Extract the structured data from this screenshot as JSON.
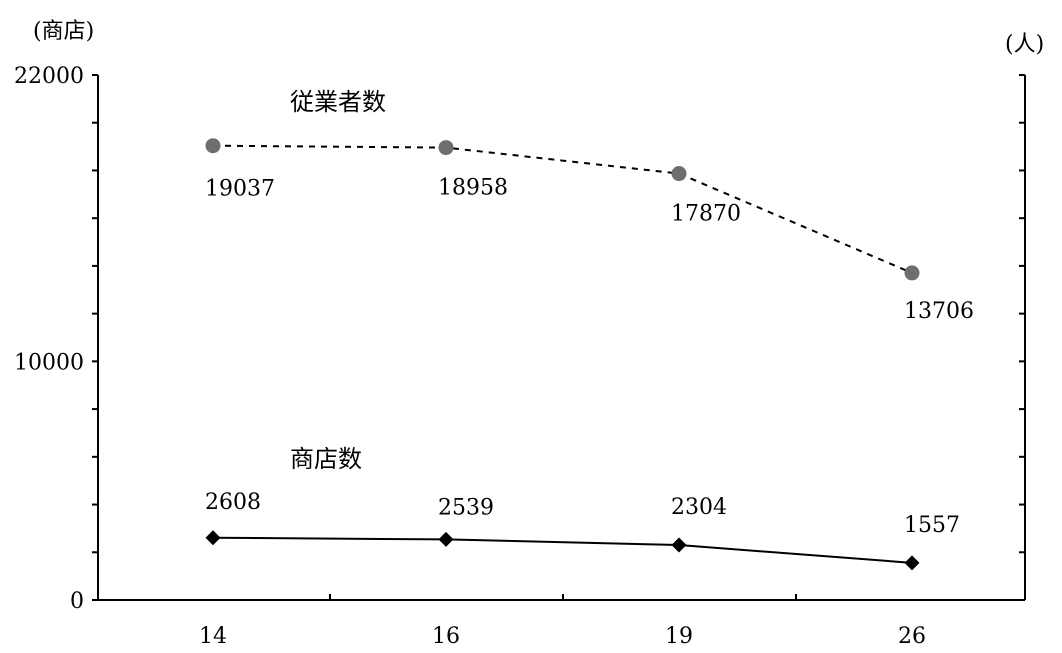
{
  "chart_data": {
    "type": "line",
    "x": [
      "14",
      "16",
      "19",
      "26"
    ],
    "y_left_unit": "(商店)",
    "y_right_unit": "(人)",
    "ylim": [
      0,
      22000
    ],
    "y_ticks": [
      "0",
      "10000",
      "22000"
    ],
    "grid": false,
    "series": [
      {
        "name": "従業者数",
        "values": [
          19037,
          18958,
          17870,
          13706
        ],
        "labels": [
          "19037",
          "18958",
          "17870",
          "13706"
        ],
        "style": "dashed",
        "marker": "circle",
        "color": "#6e6e6e"
      },
      {
        "name": "商店数",
        "values": [
          2608,
          2539,
          2304,
          1557
        ],
        "labels": [
          "2608",
          "2539",
          "2304",
          "1557"
        ],
        "style": "solid",
        "marker": "diamond",
        "color": "#000000"
      }
    ]
  }
}
